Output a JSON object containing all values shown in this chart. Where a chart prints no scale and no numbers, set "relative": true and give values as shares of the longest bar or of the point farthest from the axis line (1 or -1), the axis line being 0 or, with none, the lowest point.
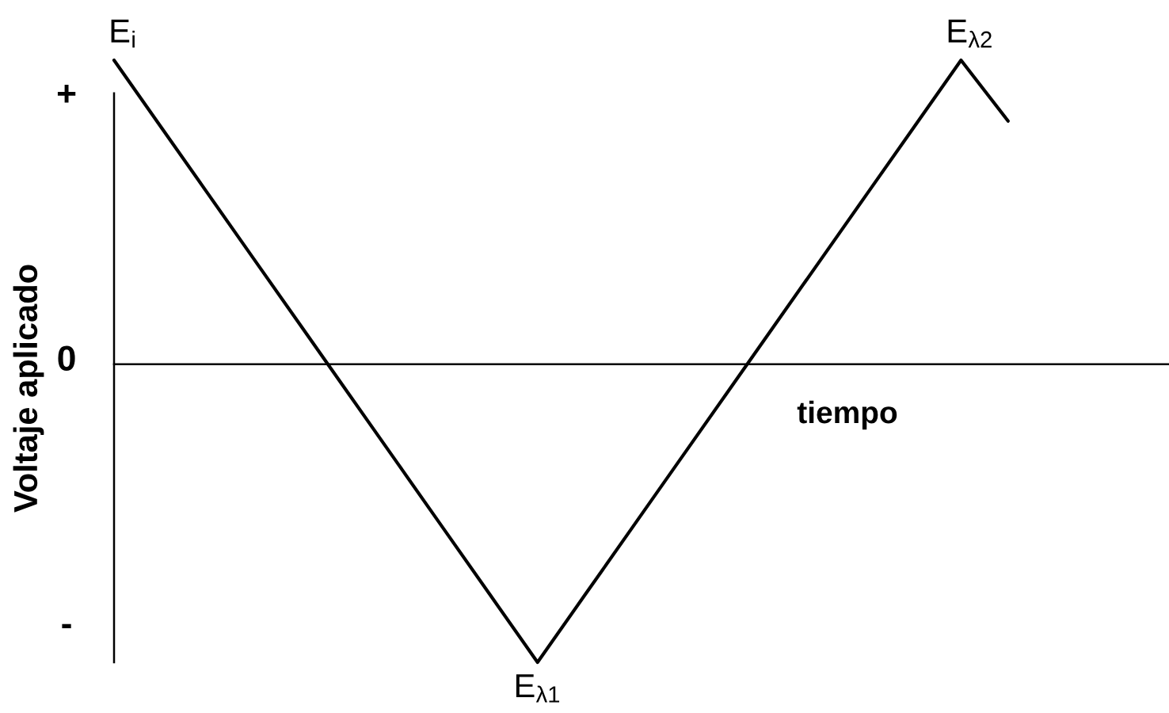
{
  "chart_data": {
    "type": "line",
    "relative": true,
    "xlabel": "tiempo",
    "ylabel": "Voltaje aplicado",
    "categories": [
      null,
      null,
      null,
      null,
      null,
      null,
      null,
      null,
      null,
      null,
      null,
      null,
      null,
      null,
      null,
      null,
      null,
      null,
      null,
      null
    ],
    "series": [
      {
        "color": "#000000",
        "values": [
          1.0,
          0.78,
          0.56,
          0.34,
          0.12,
          -0.1,
          -0.32,
          -0.54,
          -0.76,
          -0.98,
          -0.76,
          -0.54,
          -0.32,
          -0.1,
          0.12,
          0.34,
          0.56,
          0.78,
          1.0,
          0.8
        ]
      }
    ],
    "annotations": [
      {
        "text": "E$_{i}$",
        "y": 1.0
      },
      {
        "text": "E$_{λ1}$",
        "y": -0.98
      },
      {
        "text": "E$_{λ2}$",
        "y": 1.0
      },
      "+",
      "0",
      "-"
    ]
  }
}
